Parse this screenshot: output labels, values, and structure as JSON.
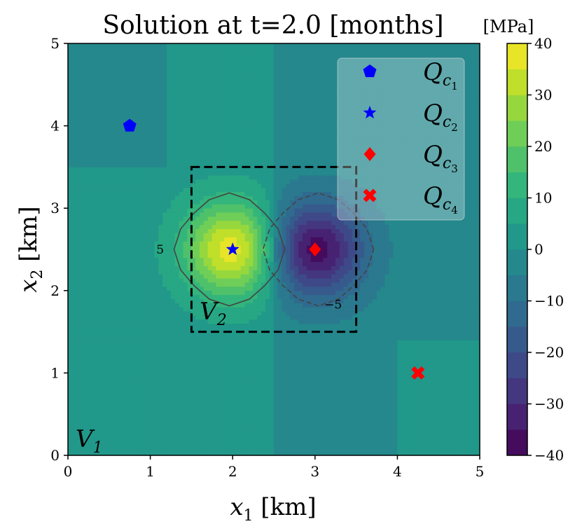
{
  "chart_data": {
    "type": "heatmap",
    "title": "Solution at t=2.0 [months]",
    "xlabel": "x₁ [km]",
    "ylabel": "x₂ [km]",
    "xlim": [
      0,
      5
    ],
    "ylim": [
      0,
      5
    ],
    "xticks": [
      "0",
      "1",
      "2",
      "3",
      "4",
      "5"
    ],
    "yticks": [
      "0",
      "1",
      "2",
      "3",
      "4",
      "5"
    ],
    "colorbar": {
      "unit_label": "[MPa]",
      "min": -40,
      "max": 40,
      "levels": [
        -40,
        -35,
        -30,
        -25,
        -20,
        -15,
        -10,
        -5,
        0,
        5,
        10,
        15,
        20,
        25,
        30,
        35,
        40
      ],
      "ticks": [
        "−40",
        "−30",
        "−20",
        "−10",
        "0",
        "10",
        "20",
        "30",
        "40"
      ]
    },
    "sources": [
      {
        "id": "Qc1",
        "x": 0.75,
        "y": 4.0,
        "marker": "pentagon",
        "color": "#0000ff"
      },
      {
        "id": "Qc2",
        "x": 2.0,
        "y": 2.5,
        "marker": "star",
        "color": "#0000ff"
      },
      {
        "id": "Qc3",
        "x": 3.0,
        "y": 2.5,
        "marker": "diamond",
        "color": "#ff0000"
      },
      {
        "id": "Qc4",
        "x": 4.25,
        "y": 1.0,
        "marker": "x",
        "color": "#ff0000"
      }
    ],
    "legend": {
      "placement": "top-right",
      "entries": [
        {
          "base": "Q",
          "sub": "c",
          "subsub": "1",
          "marker": "pentagon",
          "color": "#0000ff"
        },
        {
          "base": "Q",
          "sub": "c",
          "subsub": "2",
          "marker": "star",
          "color": "#0000ff"
        },
        {
          "base": "Q",
          "sub": "c",
          "subsub": "3",
          "marker": "diamond",
          "color": "#ff0000"
        },
        {
          "base": "Q",
          "sub": "c",
          "subsub": "4",
          "marker": "x",
          "color": "#ff0000"
        }
      ]
    },
    "region_V2": {
      "x0": 1.5,
      "x1": 3.5,
      "y0": 1.5,
      "y1": 3.5,
      "label_base": "V",
      "label_sub": "2"
    },
    "region_V1_label": {
      "base": "V",
      "sub": "1"
    },
    "contour_labels": [
      {
        "value": "5",
        "x": 1.12,
        "y": 2.45
      },
      {
        "value": "−5",
        "x": 3.22,
        "y": 1.78
      }
    ]
  }
}
